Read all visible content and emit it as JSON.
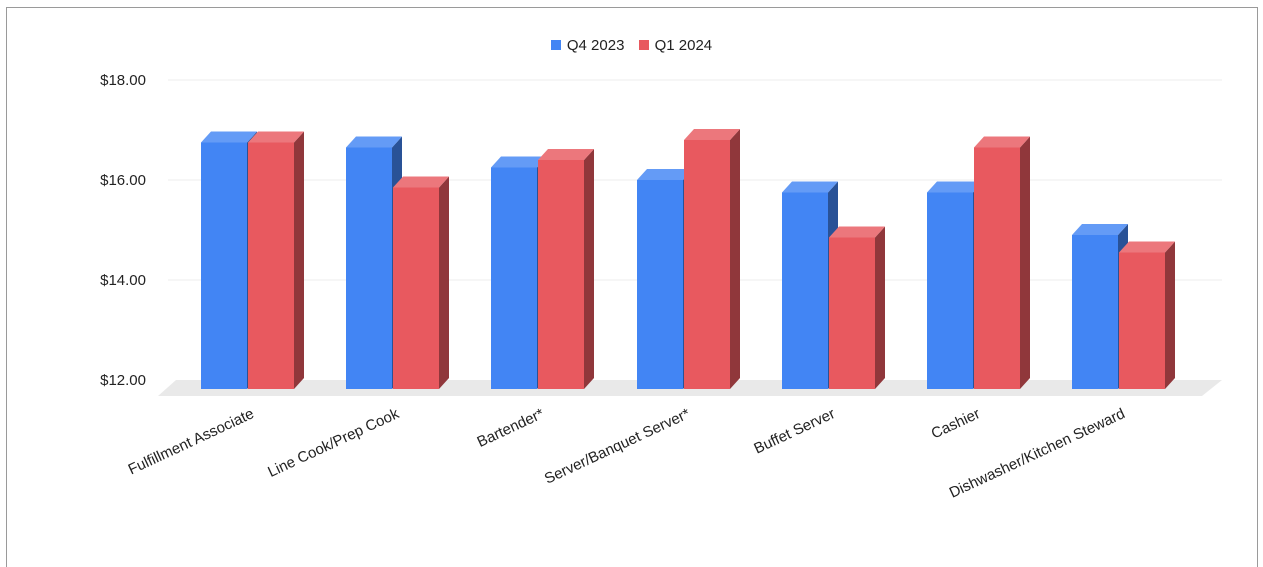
{
  "chart_data": {
    "type": "bar",
    "categories": [
      "Fulfillment Associate",
      "Line Cook/Prep Cook",
      "Bartender*",
      "Server/Banquet Server*",
      "Buffet Server",
      "Cashier",
      "Dishwasher/Kitchen Steward"
    ],
    "series": [
      {
        "name": "Q4 2023",
        "color": "#4285f4",
        "values": [
          16.75,
          16.65,
          16.25,
          16.0,
          15.75,
          15.75,
          14.9
        ]
      },
      {
        "name": "Q1 2024",
        "color": "#e8595f",
        "values": [
          16.75,
          15.85,
          16.4,
          16.8,
          14.85,
          16.65,
          14.55
        ]
      }
    ],
    "yticks": [
      "$12.00",
      "$14.00",
      "$16.00",
      "$18.00"
    ],
    "ylim": [
      12,
      18
    ],
    "legend_position": "top-center",
    "grid": true,
    "style": "3d-columns"
  }
}
